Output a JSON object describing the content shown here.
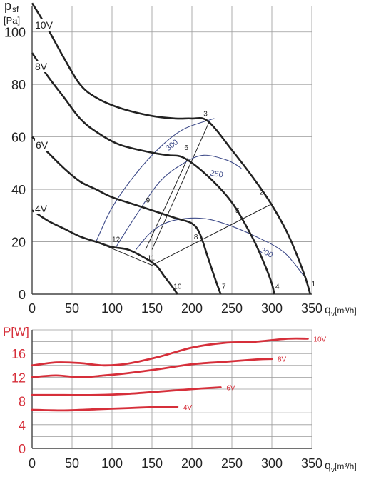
{
  "chart_data": [
    {
      "type": "line",
      "title": "",
      "ylabel_main": "p",
      "ylabel_sub": "sf",
      "yunit": "[Pa]",
      "xlabel_main": "q",
      "xlabel_sub": "v",
      "xunit": "[m³/h]",
      "xlim": [
        0,
        350
      ],
      "ylim": [
        0,
        110
      ],
      "xticks": [
        0,
        50,
        100,
        150,
        200,
        250,
        300,
        350
      ],
      "yticks": [
        0,
        20,
        40,
        60,
        80,
        100
      ],
      "grid": true,
      "series": [
        {
          "name": "10V",
          "color": "#222222",
          "points": [
            [
              0,
              111
            ],
            [
              20,
              101
            ],
            [
              40,
              90
            ],
            [
              60,
              80
            ],
            [
              80,
              75
            ],
            [
              110,
              71
            ],
            [
              150,
              68
            ],
            [
              180,
              67
            ],
            [
              200,
              67
            ],
            [
              220,
              66
            ],
            [
              250,
              55
            ],
            [
              280,
              43
            ],
            [
              300,
              34
            ],
            [
              320,
              23
            ],
            [
              340,
              8
            ],
            [
              348,
              0
            ]
          ]
        },
        {
          "name": "8V",
          "color": "#222222",
          "points": [
            [
              0,
              92
            ],
            [
              20,
              83
            ],
            [
              40,
              75
            ],
            [
              60,
              67
            ],
            [
              80,
              62
            ],
            [
              110,
              57
            ],
            [
              150,
              54
            ],
            [
              170,
              53
            ],
            [
              190,
              52
            ],
            [
              220,
              45
            ],
            [
              250,
              35
            ],
            [
              275,
              22
            ],
            [
              290,
              12
            ],
            [
              300,
              4
            ],
            [
              303,
              0
            ]
          ]
        },
        {
          "name": "6V",
          "color": "#222222",
          "points": [
            [
              0,
              60
            ],
            [
              20,
              54
            ],
            [
              40,
              48
            ],
            [
              60,
              43
            ],
            [
              80,
              40
            ],
            [
              100,
              37
            ],
            [
              130,
              34
            ],
            [
              160,
              31
            ],
            [
              180,
              29
            ],
            [
              200,
              27
            ],
            [
              210,
              23
            ],
            [
              220,
              14
            ],
            [
              230,
              5
            ],
            [
              236,
              0
            ]
          ]
        },
        {
          "name": "4V",
          "color": "#222222",
          "points": [
            [
              0,
              32
            ],
            [
              20,
              28
            ],
            [
              40,
              25
            ],
            [
              60,
              22
            ],
            [
              80,
              20
            ],
            [
              100,
              18
            ],
            [
              120,
              17
            ],
            [
              140,
              14
            ],
            [
              155,
              11
            ],
            [
              165,
              7
            ],
            [
              175,
              3
            ],
            [
              182,
              0
            ]
          ]
        }
      ],
      "curves": [
        {
          "label": "300",
          "color": "#3f4c8a",
          "points": [
            [
              80,
              20
            ],
            [
              100,
              33
            ],
            [
              130,
              46
            ],
            [
              160,
              56
            ],
            [
              190,
              63
            ],
            [
              228,
              67
            ]
          ]
        },
        {
          "label": "250",
          "color": "#3f4c8a",
          "points": [
            [
              105,
              18
            ],
            [
              130,
              30
            ],
            [
              160,
              43
            ],
            [
              190,
              50
            ],
            [
              215,
              53
            ],
            [
              245,
              51
            ],
            [
              262,
              48
            ]
          ]
        },
        {
          "label": "200",
          "color": "#3f4c8a",
          "points": [
            [
              130,
              17
            ],
            [
              150,
              24
            ],
            [
              175,
              28
            ],
            [
              210,
              29
            ],
            [
              240,
              27
            ],
            [
              280,
              22
            ],
            [
              315,
              16
            ],
            [
              340,
              7
            ]
          ]
        }
      ],
      "lines": [
        {
          "points": [
            [
              222,
              66
            ],
            [
              150,
              17
            ]
          ]
        },
        {
          "points": [
            [
              195,
              52
            ],
            [
              142,
              17
            ]
          ]
        },
        {
          "points": [
            [
              150,
              11
            ],
            [
              297,
              34
            ]
          ]
        },
        {
          "points": [
            [
              80,
              20
            ],
            [
              150,
              11
            ]
          ]
        }
      ],
      "point_labels": [
        {
          "label": "1",
          "x": 352,
          "y": 3
        },
        {
          "label": "2",
          "x": 287,
          "y": 38
        },
        {
          "label": "3",
          "x": 217,
          "y": 68
        },
        {
          "label": "4",
          "x": 307,
          "y": 2
        },
        {
          "label": "5",
          "x": 257,
          "y": 31
        },
        {
          "label": "6",
          "x": 193,
          "y": 55
        },
        {
          "label": "7",
          "x": 240,
          "y": 2
        },
        {
          "label": "8",
          "x": 205,
          "y": 21
        },
        {
          "label": "9",
          "x": 145,
          "y": 35
        },
        {
          "label": "10",
          "x": 182,
          "y": 2
        },
        {
          "label": "11",
          "x": 149,
          "y": 13
        },
        {
          "label": "12",
          "x": 105,
          "y": 20
        }
      ]
    },
    {
      "type": "line",
      "title": "",
      "ylabel": "P[W]",
      "xlabel_main": "q",
      "xlabel_sub": "v",
      "xunit": "[m³/h]",
      "xlim": [
        0,
        350
      ],
      "ylim": [
        0,
        20
      ],
      "xticks": [
        0,
        50,
        100,
        150,
        200,
        250,
        300,
        350
      ],
      "yticks": [
        0,
        4,
        8,
        12,
        16
      ],
      "grid": true,
      "series": [
        {
          "name": "10V",
          "color": "#d62f3a",
          "points": [
            [
              0,
              14
            ],
            [
              30,
              14.5
            ],
            [
              60,
              14.4
            ],
            [
              90,
              14
            ],
            [
              120,
              14.3
            ],
            [
              160,
              15.5
            ],
            [
              200,
              17
            ],
            [
              240,
              17.8
            ],
            [
              280,
              18
            ],
            [
              320,
              18.5
            ],
            [
              345,
              18.5
            ]
          ]
        },
        {
          "name": "8V",
          "color": "#d62f3a",
          "points": [
            [
              0,
              12
            ],
            [
              30,
              12.3
            ],
            [
              60,
              12
            ],
            [
              90,
              12.3
            ],
            [
              120,
              12.7
            ],
            [
              160,
              13.4
            ],
            [
              200,
              14.2
            ],
            [
              240,
              14.6
            ],
            [
              280,
              15
            ],
            [
              300,
              15.1
            ]
          ]
        },
        {
          "name": "6V",
          "color": "#d62f3a",
          "points": [
            [
              0,
              9
            ],
            [
              40,
              9
            ],
            [
              80,
              9
            ],
            [
              120,
              9.2
            ],
            [
              160,
              9.6
            ],
            [
              200,
              10
            ],
            [
              236,
              10.3
            ]
          ]
        },
        {
          "name": "4V",
          "color": "#d62f3a",
          "points": [
            [
              0,
              6.5
            ],
            [
              40,
              6.4
            ],
            [
              80,
              6.6
            ],
            [
              120,
              6.8
            ],
            [
              160,
              7
            ],
            [
              182,
              7
            ]
          ]
        }
      ]
    }
  ]
}
